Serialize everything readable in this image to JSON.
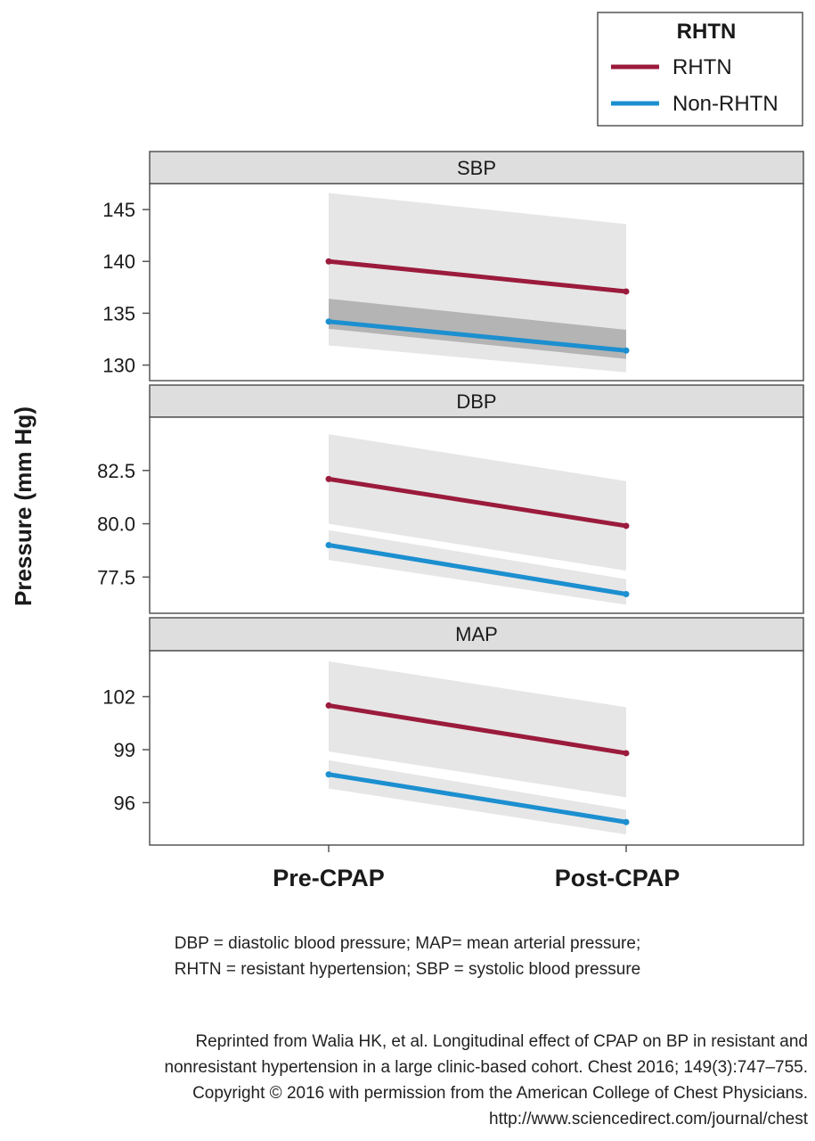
{
  "chart_data": {
    "type": "line",
    "categories": [
      "Pre-CPAP",
      "Post-CPAP"
    ],
    "ylabel": "Pressure (mm Hg)",
    "legend": {
      "title": "RHTN",
      "position": "top-right",
      "entries": [
        "RHTN",
        "Non-RHTN"
      ]
    },
    "colors": {
      "RHTN": "#9b1b3c",
      "Non-RHTN": "#1c8fd0",
      "band": "#e2e2e2",
      "overlap": "#b4b4b4",
      "strip": "#dedede"
    },
    "panels": [
      {
        "title": "SBP",
        "ylim": [
          128.5,
          147.5
        ],
        "ticks": [
          "145",
          "140",
          "135",
          "130"
        ],
        "series": [
          {
            "name": "RHTN",
            "values": [
              140.0,
              137.1
            ],
            "ci": [
              [
                133.5,
                146.6
              ],
              [
                130.6,
                143.6
              ]
            ]
          },
          {
            "name": "Non-RHTN",
            "values": [
              134.2,
              131.4
            ],
            "ci": [
              [
                131.9,
                136.4
              ],
              [
                129.3,
                133.4
              ]
            ]
          }
        ]
      },
      {
        "title": "DBP",
        "ylim": [
          75.8,
          85.0
        ],
        "ticks": [
          "82.5",
          "80.0",
          "77.5"
        ],
        "series": [
          {
            "name": "RHTN",
            "values": [
              82.1,
              79.9
            ],
            "ci": [
              [
                80.0,
                84.2
              ],
              [
                77.8,
                82.0
              ]
            ]
          },
          {
            "name": "Non-RHTN",
            "values": [
              79.0,
              76.7
            ],
            "ci": [
              [
                78.3,
                79.7
              ],
              [
                76.2,
                77.4
              ]
            ]
          }
        ]
      },
      {
        "title": "MAP",
        "ylim": [
          93.6,
          104.6
        ],
        "ticks": [
          "102",
          "99",
          "96"
        ],
        "series": [
          {
            "name": "RHTN",
            "values": [
              101.5,
              98.8
            ],
            "ci": [
              [
                98.9,
                104.0
              ],
              [
                96.3,
                101.4
              ]
            ]
          },
          {
            "name": "Non-RHTN",
            "values": [
              97.6,
              94.9
            ],
            "ci": [
              [
                96.8,
                98.4
              ],
              [
                94.2,
                95.6
              ]
            ]
          }
        ]
      }
    ]
  },
  "footnote": {
    "line1": "DBP = diastolic blood pressure; MAP= mean arterial pressure;",
    "line2": "RHTN = resistant hypertension; SBP = systolic blood pressure"
  },
  "credit": {
    "line1": "Reprinted from Walia HK, et al. Longitudinal effect of CPAP on BP in resistant and",
    "line2": "nonresistant hypertension in a large clinic-based cohort. Chest 2016; 149(3):747–755.",
    "line3": "Copyright © 2016 with permission from the American College of Chest Physicians.",
    "line4": "http://www.sciencedirect.com/journal/chest"
  }
}
